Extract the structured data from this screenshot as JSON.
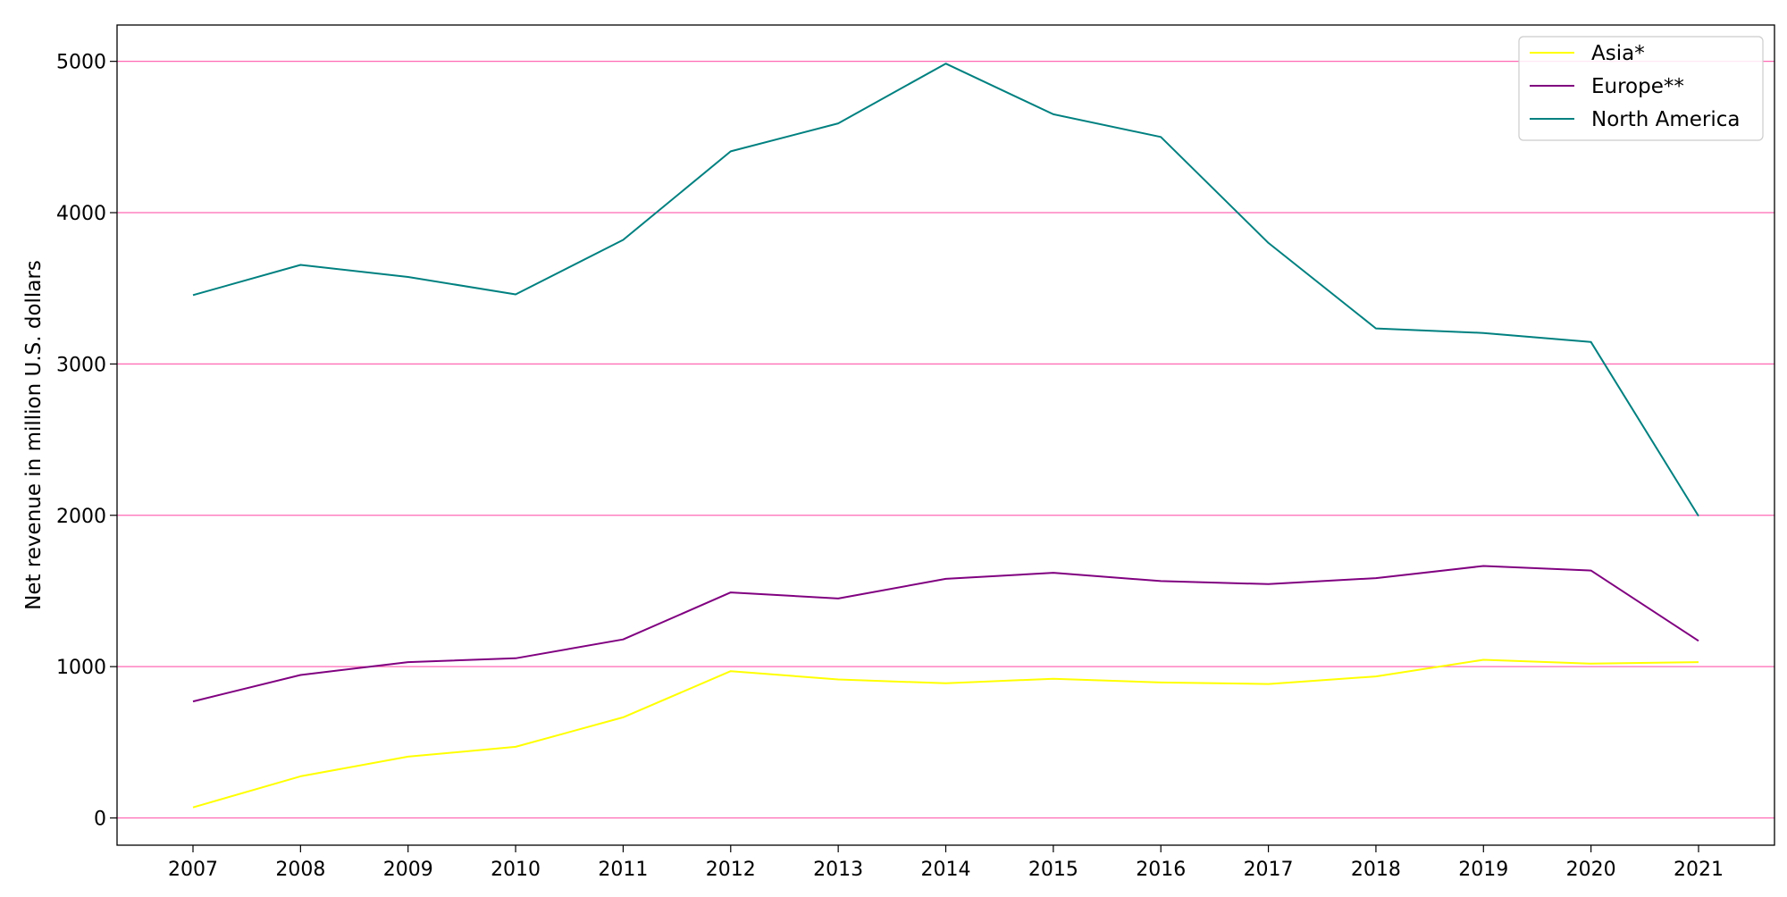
{
  "chart_data": {
    "type": "line",
    "title": "",
    "xlabel": "",
    "ylabel": "Net revenue in million U.S. dollars",
    "x": [
      "2007",
      "2008",
      "2009",
      "2010",
      "2011",
      "2012",
      "2013",
      "2014",
      "2015",
      "2016",
      "2017",
      "2018",
      "2019",
      "2020",
      "2021"
    ],
    "series": [
      {
        "name": "Asia*",
        "color": "#ffff00",
        "values": [
          70,
          275,
          405,
          470,
          665,
          970,
          915,
          890,
          920,
          895,
          885,
          935,
          1045,
          1020,
          1030
        ]
      },
      {
        "name": "Europe**",
        "color": "#800080",
        "values": [
          770,
          945,
          1030,
          1055,
          1180,
          1490,
          1450,
          1580,
          1620,
          1565,
          1545,
          1585,
          1665,
          1635,
          1170
        ]
      },
      {
        "name": "North America",
        "color": "#008080",
        "values": [
          3455,
          3655,
          3575,
          3460,
          3820,
          4405,
          4590,
          4985,
          4650,
          4500,
          3800,
          3235,
          3205,
          3145,
          1995
        ]
      }
    ],
    "ylim": [
      -180,
      5240
    ],
    "yticks": [
      0,
      1000,
      2000,
      3000,
      4000,
      5000
    ],
    "grid": {
      "axis": "y",
      "color": "#ff69b4"
    },
    "legend_position": "top-right"
  }
}
